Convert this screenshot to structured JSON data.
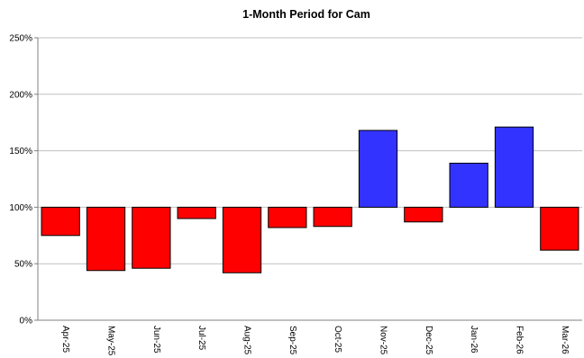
{
  "chart_data": {
    "type": "bar",
    "title": "1-Month Period for Cam",
    "xlabel": "",
    "ylabel": "",
    "baseline": 100,
    "ylim": [
      0,
      250
    ],
    "yticks": [
      0,
      50,
      100,
      150,
      200,
      250
    ],
    "ytick_labels": [
      "0%",
      "50%",
      "100%",
      "150%",
      "200%",
      "250%"
    ],
    "grid": true,
    "legend": "none",
    "categories": [
      "Apr-25",
      "May-25",
      "Jun-25",
      "Jul-25",
      "Aug-25",
      "Sep-25",
      "Oct-25",
      "Nov-25",
      "Dec-25",
      "Jan-26",
      "Feb-26",
      "Mar-26"
    ],
    "values": [
      75,
      44,
      46,
      90,
      42,
      82,
      83,
      168,
      87,
      139,
      171,
      62
    ],
    "colors": {
      "below_baseline": "#ff0000",
      "above_baseline": "#3333ff",
      "bar_outline": "#000000",
      "gridline": "#c0c0c0",
      "axis": "#808080"
    }
  }
}
